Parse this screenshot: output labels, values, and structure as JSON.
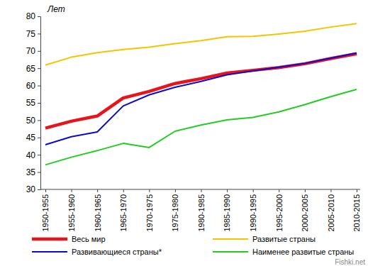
{
  "chart_data": {
    "type": "line",
    "y_label": "Лет",
    "categories": [
      "1950-1955",
      "1955-1960",
      "1960-1965",
      "1965-1970",
      "1970-1975",
      "1975-1980",
      "1980-1985",
      "1985-1990",
      "1990-1995",
      "1995-2000",
      "2000-2005",
      "2005-2010",
      "2010-2015"
    ],
    "series": [
      {
        "name": "Весь мир",
        "color": "#e8141b",
        "values": [
          47.7,
          49.7,
          51.2,
          56.4,
          58.3,
          60.6,
          62.0,
          63.6,
          64.4,
          65.2,
          66.3,
          67.8,
          69.2
        ]
      },
      {
        "name": "Развитые страны",
        "color": "#f5c400",
        "values": [
          65.9,
          68.2,
          69.5,
          70.4,
          71.1,
          72.1,
          73.0,
          74.1,
          74.2,
          74.9,
          75.7,
          76.9,
          77.9
        ]
      },
      {
        "name": "Развивающиеся страны*",
        "color": "#0a0ad2",
        "values": [
          42.9,
          45.2,
          46.6,
          54.1,
          57.3,
          59.5,
          61.2,
          63.1,
          64.2,
          65.3,
          66.4,
          67.9,
          69.4
        ]
      },
      {
        "name": "Наименее развитые страны",
        "color": "#22cc22",
        "values": [
          37.1,
          39.3,
          41.2,
          43.3,
          42.1,
          46.8,
          48.6,
          50.1,
          50.8,
          52.4,
          54.5,
          56.8,
          58.9
        ]
      }
    ],
    "ylim": [
      30,
      80
    ],
    "yticks": [
      30,
      35,
      40,
      45,
      50,
      55,
      60,
      65,
      70,
      75,
      80
    ],
    "grid": false,
    "legend": "bottom",
    "annotations": [
      "Fishki.net"
    ]
  }
}
